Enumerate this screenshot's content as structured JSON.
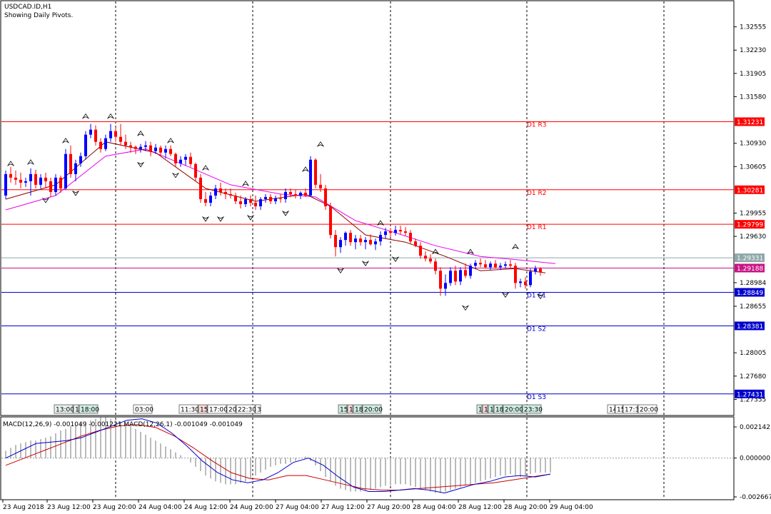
{
  "header": {
    "symbol_line": "USDCAD.ID,H1",
    "subtitle": "Showing Daily Pivots."
  },
  "colors": {
    "bull": "#0000FF",
    "bear": "#FF0000",
    "resistance": "#FF0000",
    "support": "#0000CC",
    "pivot": "#C71585",
    "ma_fast": "#8B0000",
    "ma_slow": "#EE00EE",
    "macd": "#0000CC",
    "signal": "#CC0000",
    "ask": "#8FA8A8"
  },
  "chart_data": {
    "type": "candlestick",
    "price_axis": {
      "min": 1.2717,
      "max": 1.3287,
      "ticks": [
        "1.32555",
        "1.32230",
        "1.31905",
        "1.31580",
        "1.30930",
        "1.30605",
        "1.29955",
        "1.29630",
        "1.28984",
        "1.28655",
        "1.28005",
        "1.27680",
        "1.27355"
      ]
    },
    "pivots": [
      {
        "label": "D1 R3",
        "value": 1.31231,
        "price_text": "1.31231",
        "kind": "resistance"
      },
      {
        "label": "D1 R2",
        "value": 1.30281,
        "price_text": "1.30281",
        "kind": "resistance"
      },
      {
        "label": "D1 R1",
        "value": 1.29799,
        "price_text": "1.29799",
        "kind": "resistance"
      },
      {
        "label": "",
        "value": 1.29188,
        "price_text": "1.29188",
        "kind": "pivot"
      },
      {
        "label": "D1 S1",
        "value": 1.28849,
        "price_text": "1.28849",
        "kind": "support"
      },
      {
        "label": "D1 S2",
        "value": 1.28381,
        "price_text": "1.28381",
        "kind": "support"
      },
      {
        "label": "D1 S3",
        "value": 1.27431,
        "price_text": "1.27431",
        "kind": "support"
      }
    ],
    "ask_line": {
      "value": 1.29331,
      "price_text": "1.29331"
    },
    "candles": [
      [
        1.302,
        1.3055,
        1.3015,
        1.305
      ],
      [
        1.305,
        1.306,
        1.3038,
        1.3045
      ],
      [
        1.3045,
        1.3055,
        1.3035,
        1.3042
      ],
      [
        1.3042,
        1.3052,
        1.303,
        1.3038
      ],
      [
        1.3038,
        1.3045,
        1.3032,
        1.304
      ],
      [
        1.304,
        1.3058,
        1.302,
        1.305
      ],
      [
        1.305,
        1.3056,
        1.303,
        1.3035
      ],
      [
        1.3035,
        1.305,
        1.303,
        1.3045
      ],
      [
        1.3045,
        1.3052,
        1.303,
        1.304
      ],
      [
        1.304,
        1.3045,
        1.3018,
        1.3025
      ],
      [
        1.3025,
        1.305,
        1.302,
        1.3045
      ],
      [
        1.3045,
        1.3048,
        1.3024,
        1.303
      ],
      [
        1.303,
        1.3085,
        1.3028,
        1.3078
      ],
      [
        1.3078,
        1.309,
        1.3045,
        1.305
      ],
      [
        1.305,
        1.307,
        1.304,
        1.3065
      ],
      [
        1.3065,
        1.308,
        1.306,
        1.3075
      ],
      [
        1.3075,
        1.311,
        1.307,
        1.3105
      ],
      [
        1.3105,
        1.312,
        1.31,
        1.3112
      ],
      [
        1.3112,
        1.3118,
        1.309,
        1.3095
      ],
      [
        1.3095,
        1.31,
        1.308,
        1.3085
      ],
      [
        1.3085,
        1.3105,
        1.3082,
        1.31
      ],
      [
        1.31,
        1.312,
        1.3095,
        1.311
      ],
      [
        1.311,
        1.3115,
        1.3095,
        1.3102
      ],
      [
        1.3102,
        1.312,
        1.309,
        1.3095
      ],
      [
        1.3095,
        1.3105,
        1.3085,
        1.309
      ],
      [
        1.309,
        1.3095,
        1.308,
        1.3088
      ],
      [
        1.3088,
        1.309,
        1.3078,
        1.3085
      ],
      [
        1.3085,
        1.3092,
        1.308,
        1.3088
      ],
      [
        1.3088,
        1.3096,
        1.3082,
        1.309
      ],
      [
        1.309,
        1.3095,
        1.3075,
        1.3082
      ],
      [
        1.3082,
        1.3092,
        1.3078,
        1.3087
      ],
      [
        1.3087,
        1.309,
        1.3076,
        1.308
      ],
      [
        1.308,
        1.309,
        1.3072,
        1.3085
      ],
      [
        1.3085,
        1.309,
        1.3075,
        1.3078
      ],
      [
        1.3078,
        1.308,
        1.306,
        1.3065
      ],
      [
        1.3065,
        1.3075,
        1.306,
        1.307
      ],
      [
        1.307,
        1.3078,
        1.3062,
        1.3074
      ],
      [
        1.3074,
        1.308,
        1.306,
        1.3064
      ],
      [
        1.3064,
        1.3066,
        1.304,
        1.3045
      ],
      [
        1.3045,
        1.305,
        1.301,
        1.3015
      ],
      [
        1.3015,
        1.3025,
        1.3005,
        1.301
      ],
      [
        1.301,
        1.3025,
        1.3005,
        1.302
      ],
      [
        1.302,
        1.3035,
        1.3015,
        1.303
      ],
      [
        1.303,
        1.3038,
        1.302,
        1.3025
      ],
      [
        1.3025,
        1.303,
        1.3015,
        1.3022
      ],
      [
        1.3022,
        1.303,
        1.3016,
        1.302
      ],
      [
        1.302,
        1.3024,
        1.3008,
        1.3012
      ],
      [
        1.3012,
        1.302,
        1.3002,
        1.3008
      ],
      [
        1.3008,
        1.3018,
        1.3004,
        1.3015
      ],
      [
        1.3015,
        1.302,
        1.3005,
        1.301
      ],
      [
        1.301,
        1.302,
        1.3,
        1.3005
      ],
      [
        1.3005,
        1.3018,
        1.3,
        1.3015
      ],
      [
        1.3015,
        1.3022,
        1.301,
        1.3018
      ],
      [
        1.3018,
        1.3022,
        1.3008,
        1.3012
      ],
      [
        1.3012,
        1.302,
        1.3008,
        1.3016
      ],
      [
        1.3016,
        1.3022,
        1.301,
        1.3015
      ],
      [
        1.3015,
        1.303,
        1.301,
        1.3025
      ],
      [
        1.3025,
        1.303,
        1.3018,
        1.3022
      ],
      [
        1.3022,
        1.3028,
        1.3016,
        1.302
      ],
      [
        1.302,
        1.3026,
        1.3015,
        1.3024
      ],
      [
        1.3024,
        1.303,
        1.3018,
        1.302
      ],
      [
        1.302,
        1.3075,
        1.3018,
        1.307
      ],
      [
        1.307,
        1.3072,
        1.303,
        1.3035
      ],
      [
        1.3035,
        1.305,
        1.3025,
        1.303
      ],
      [
        1.303,
        1.3035,
        1.3,
        1.3005
      ],
      [
        1.3005,
        1.301,
        1.296,
        1.2965
      ],
      [
        1.2965,
        1.2972,
        1.2935,
        1.2948
      ],
      [
        1.2948,
        1.2962,
        1.294,
        1.2958
      ],
      [
        1.2958,
        1.297,
        1.295,
        1.2968
      ],
      [
        1.2968,
        1.2972,
        1.295,
        1.2955
      ],
      [
        1.2955,
        1.2965,
        1.2945,
        1.296
      ],
      [
        1.296,
        1.2965,
        1.295,
        1.2955
      ],
      [
        1.2955,
        1.2962,
        1.2945,
        1.2958
      ],
      [
        1.2958,
        1.2966,
        1.295,
        1.2952
      ],
      [
        1.2952,
        1.296,
        1.2944,
        1.2956
      ],
      [
        1.2956,
        1.297,
        1.295,
        1.2965
      ],
      [
        1.2965,
        1.2975,
        1.296,
        1.297
      ],
      [
        1.297,
        1.2975,
        1.2962,
        1.2968
      ],
      [
        1.2968,
        1.2978,
        1.2964,
        1.2972
      ],
      [
        1.2972,
        1.2978,
        1.2966,
        1.297
      ],
      [
        1.297,
        1.2976,
        1.2964,
        1.2968
      ],
      [
        1.2968,
        1.2972,
        1.2952,
        1.2956
      ],
      [
        1.2956,
        1.296,
        1.2948,
        1.295
      ],
      [
        1.295,
        1.2955,
        1.2932,
        1.2936
      ],
      [
        1.2936,
        1.2942,
        1.2928,
        1.2932
      ],
      [
        1.2932,
        1.2938,
        1.2925,
        1.2928
      ],
      [
        1.2928,
        1.2932,
        1.291,
        1.2915
      ],
      [
        1.2915,
        1.292,
        1.288,
        1.289
      ],
      [
        1.289,
        1.291,
        1.288,
        1.2898
      ],
      [
        1.2898,
        1.292,
        1.2894,
        1.2915
      ],
      [
        1.2915,
        1.2922,
        1.2895,
        1.29
      ],
      [
        1.29,
        1.292,
        1.2895,
        1.2916
      ],
      [
        1.2916,
        1.2925,
        1.2905,
        1.2908
      ],
      [
        1.2908,
        1.2925,
        1.2904,
        1.2922
      ],
      [
        1.2922,
        1.293,
        1.2918,
        1.2926
      ],
      [
        1.2926,
        1.2932,
        1.292,
        1.2924
      ],
      [
        1.2924,
        1.293,
        1.2918,
        1.292
      ],
      [
        1.292,
        1.2928,
        1.2916,
        1.2925
      ],
      [
        1.2925,
        1.293,
        1.2918,
        1.292
      ],
      [
        1.292,
        1.2926,
        1.2916,
        1.2922
      ],
      [
        1.2922,
        1.2928,
        1.2918,
        1.2924
      ],
      [
        1.2924,
        1.293,
        1.2918,
        1.2922
      ],
      [
        1.2922,
        1.2926,
        1.289,
        1.2898
      ],
      [
        1.2898,
        1.2904,
        1.2892,
        1.29
      ],
      [
        1.29,
        1.2906,
        1.289,
        1.2895
      ],
      [
        1.2895,
        1.2918,
        1.2892,
        1.2914
      ],
      [
        1.2914,
        1.2922,
        1.291,
        1.2918
      ],
      [
        1.2918,
        1.292,
        1.2908,
        1.2913
      ]
    ],
    "fractals_up": [
      [
        1,
        1.3058
      ],
      [
        5,
        1.306
      ],
      [
        12,
        1.309
      ],
      [
        16,
        1.3124
      ],
      [
        21,
        1.3124
      ],
      [
        27,
        1.31
      ],
      [
        33,
        1.309
      ],
      [
        40,
        1.3052
      ],
      [
        48,
        1.303
      ],
      [
        60,
        1.305
      ],
      [
        63,
        1.3085
      ],
      [
        75,
        1.2975
      ],
      [
        86,
        1.2935
      ],
      [
        93,
        1.2935
      ],
      [
        102,
        1.2942
      ]
    ],
    "fractals_down": [
      [
        8,
        1.302
      ],
      [
        14,
        1.303
      ],
      [
        27,
        1.307
      ],
      [
        34,
        1.3055
      ],
      [
        40,
        1.2994
      ],
      [
        43,
        1.2994
      ],
      [
        49,
        1.2996
      ],
      [
        56,
        1.3002
      ],
      [
        67,
        1.2922
      ],
      [
        72,
        1.2932
      ],
      [
        78,
        1.2938
      ],
      [
        92,
        1.287
      ],
      [
        100,
        1.2888
      ],
      [
        107,
        1.2886
      ]
    ],
    "ma_fast": [
      [
        0,
        1.3015
      ],
      [
        10,
        1.3035
      ],
      [
        20,
        1.3095
      ],
      [
        30,
        1.308
      ],
      [
        40,
        1.303
      ],
      [
        50,
        1.3012
      ],
      [
        60,
        1.3022
      ],
      [
        65,
        1.3005
      ],
      [
        72,
        1.2965
      ],
      [
        80,
        1.2955
      ],
      [
        88,
        1.2935
      ],
      [
        95,
        1.2915
      ],
      [
        102,
        1.2918
      ],
      [
        108,
        1.2912
      ]
    ],
    "ma_slow": [
      [
        0,
        1.3
      ],
      [
        10,
        1.302
      ],
      [
        20,
        1.3075
      ],
      [
        28,
        1.3085
      ],
      [
        36,
        1.3062
      ],
      [
        45,
        1.3035
      ],
      [
        55,
        1.3022
      ],
      [
        62,
        1.3018
      ],
      [
        70,
        1.2985
      ],
      [
        78,
        1.2968
      ],
      [
        86,
        1.295
      ],
      [
        95,
        1.2935
      ],
      [
        103,
        1.293
      ],
      [
        110,
        1.2925
      ]
    ],
    "x_axis": {
      "labels": [
        "23 Aug 2018",
        "23 Aug 12:00",
        "23 Aug 20:00",
        "24 Aug 04:00",
        "24 Aug 12:00",
        "24 Aug 20:00",
        "27 Aug 04:00",
        "27 Aug 12:00",
        "27 Aug 20:00",
        "28 Aug 04:00",
        "28 Aug 12:00",
        "28 Aug 20:00",
        "29 Aug 04:00"
      ]
    },
    "session_labels": [
      {
        "text": "13:00",
        "fill": "#E6F2EE"
      },
      {
        "text": "1",
        "fill": "#E6F2EE"
      },
      {
        "text": "18:00",
        "fill": "#CFEDE3"
      },
      {
        "text": "03:00",
        "fill": "#FFFFFF"
      },
      {
        "text": "11:30",
        "fill": "#FFFFFF"
      },
      {
        "text": "15:",
        "fill": "#F9D9D9"
      },
      {
        "text": "17:00",
        "fill": "#FFFFFF"
      },
      {
        "text": "20:",
        "fill": "#FFFFFF"
      },
      {
        "text": "22:30",
        "fill": "#FFFFFF"
      },
      {
        "text": "3",
        "fill": "#FFFFFF"
      },
      {
        "text": "15:",
        "fill": "#CFEDE3"
      },
      {
        "text": "1",
        "fill": "#F9D9D9"
      },
      {
        "text": "18:",
        "fill": "#CFEDE3"
      },
      {
        "text": "20:00",
        "fill": "#CFEDE3"
      },
      {
        "text": "1",
        "fill": "#CFEDE3"
      },
      {
        "text": "1",
        "fill": "#F9D9D9"
      },
      {
        "text": "1",
        "fill": "#CFEDE3"
      },
      {
        "text": "18:",
        "fill": "#CFEDE3"
      },
      {
        "text": "20:00",
        "fill": "#CFEDE3"
      },
      {
        "text": "23:30",
        "fill": "#CFEDE3"
      },
      {
        "text": "14",
        "fill": "#FFFFFF"
      },
      {
        "text": "15",
        "fill": "#FFFFFF"
      },
      {
        "text": "17:3",
        "fill": "#FFFFFF"
      },
      {
        "text": "20:00",
        "fill": "#FFFFFF"
      }
    ],
    "macd": {
      "label": "MACD(12,26,9) -0.001049 -0.001221 MACD(12,26,1) -0.001049 -0.001049",
      "ticks": [
        "0.002142",
        "0.000000",
        "-0.002667"
      ],
      "min": -0.002667,
      "max": 0.002142,
      "hist": [
        0.0005,
        0.0007,
        0.0009,
        0.001,
        0.0011,
        0.0012,
        0.0012,
        0.0013,
        0.0014,
        0.0015,
        0.0017,
        0.0019,
        0.002,
        0.0022,
        0.0023,
        0.0024,
        0.0025,
        0.0026,
        0.0027,
        0.0028,
        0.0028,
        0.0027,
        0.0026,
        0.0025,
        0.0024,
        0.0022,
        0.002,
        0.0018,
        0.0016,
        0.0014,
        0.0012,
        0.001,
        0.0008,
        0.0006,
        0.0004,
        0.0002,
        0.0,
        -0.0003,
        -0.0006,
        -0.0009,
        -0.0012,
        -0.0014,
        -0.0016,
        -0.0017,
        -0.0018,
        -0.0018,
        -0.0018,
        -0.0017,
        -0.0016,
        -0.0014,
        -0.0012,
        -0.001,
        -0.0008,
        -0.0006,
        -0.0005,
        -0.0004,
        -0.0004,
        -0.0003,
        -0.0002,
        0.0,
        0.0001,
        -0.0002,
        -0.0005,
        -0.0009,
        -0.0013,
        -0.0016,
        -0.0019,
        -0.0021,
        -0.0022,
        -0.0023,
        -0.0023,
        -0.0023,
        -0.0022,
        -0.0022,
        -0.0021,
        -0.002,
        -0.0019,
        -0.0019,
        -0.0018,
        -0.0018,
        -0.0018,
        -0.0019,
        -0.002,
        -0.0021,
        -0.0022,
        -0.0023,
        -0.0024,
        -0.0024,
        -0.0023,
        -0.0022,
        -0.0021,
        -0.002,
        -0.0019,
        -0.0018,
        -0.0017,
        -0.0016,
        -0.0015,
        -0.0014,
        -0.0013,
        -0.0012,
        -0.0012,
        -0.0011,
        -0.0012,
        -0.0013,
        -0.0012,
        -0.0011,
        -0.001,
        -0.001,
        -0.001,
        -0.001
      ],
      "signal": [
        -0.0005,
        0.0,
        0.0005,
        0.001,
        0.0015,
        0.0019,
        0.0022,
        0.0023,
        0.0021,
        0.0015,
        0.0007,
        -0.0002,
        -0.001,
        -0.0014,
        -0.0015,
        -0.0012,
        -0.0012,
        -0.0015,
        -0.0018,
        -0.0021,
        -0.0022,
        -0.0022,
        -0.0021,
        -0.002,
        -0.0019,
        -0.0018,
        -0.0017,
        -0.0015,
        -0.0013,
        -0.0011
      ],
      "macd_line": [
        0.0,
        0.0005,
        0.001,
        0.0011,
        0.0012,
        0.0014,
        0.0018,
        0.0022,
        0.0026,
        0.0027,
        0.0024,
        0.0017,
        0.0008,
        -0.0002,
        -0.001,
        -0.0015,
        -0.0017,
        -0.0015,
        -0.001,
        -0.0003,
        0.0,
        -0.0005,
        -0.0013,
        -0.002,
        -0.0023,
        -0.0023,
        -0.0022,
        -0.0021,
        -0.0022,
        -0.0024,
        -0.0021,
        -0.0018,
        -0.0016,
        -0.0013,
        -0.0012,
        -0.0013,
        -0.0011
      ]
    }
  }
}
